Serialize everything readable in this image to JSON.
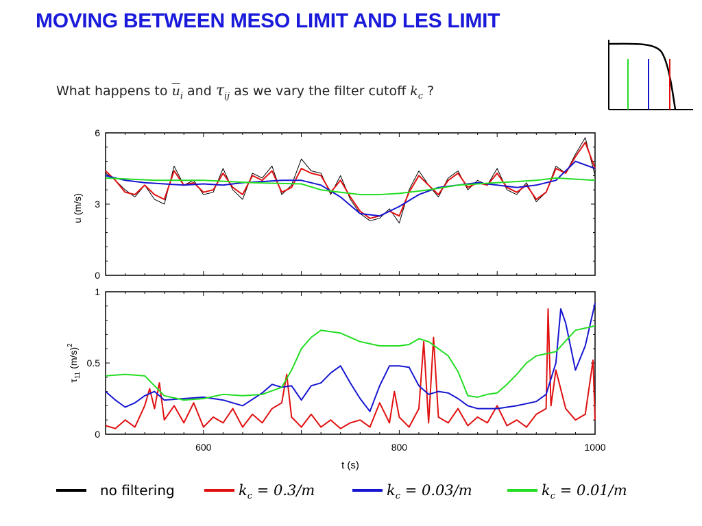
{
  "header": {
    "title": "MOVING BETWEEN MESO LIMIT AND LES LIMIT"
  },
  "question": {
    "prefix": "What happens to",
    "var_u": "u",
    "var_u_sub": "i",
    "conj": "and",
    "var_tau": "τ",
    "var_tau_sub": "ij",
    "suffix": "as we vary the filter cutoff",
    "var_k": "k",
    "var_k_sub": "c",
    "end": "?"
  },
  "colors": {
    "title": "#1a1adb",
    "no_filtering": "#000000",
    "kc_03": "#e01010",
    "kc_003": "#1515d0",
    "kc_001": "#22dd22"
  },
  "legend": [
    {
      "label": "no filtering",
      "color": "#000000",
      "math": false
    },
    {
      "label": "k",
      "sub": "c",
      "rest": " = 0.3/m",
      "color": "#e01010",
      "math": true
    },
    {
      "label": "k",
      "sub": "c",
      "rest": " = 0.03/m",
      "color": "#1515d0",
      "math": true
    },
    {
      "label": "k",
      "sub": "c",
      "rest": " = 0.01/m",
      "color": "#22dd22",
      "math": true
    }
  ],
  "chart_data": [
    {
      "type": "line",
      "ylabel": "u (m/s)",
      "xlim": [
        500,
        1000
      ],
      "ylim": [
        0,
        6
      ],
      "yticks": [
        "0",
        "3",
        "6"
      ],
      "series": [
        {
          "name": "no filtering",
          "color": "#000000",
          "x": [
            500,
            510,
            520,
            530,
            540,
            550,
            560,
            570,
            580,
            590,
            600,
            610,
            620,
            630,
            640,
            650,
            660,
            670,
            680,
            690,
            700,
            710,
            720,
            730,
            740,
            750,
            760,
            770,
            780,
            790,
            800,
            810,
            820,
            830,
            840,
            850,
            860,
            870,
            880,
            890,
            900,
            910,
            920,
            930,
            940,
            950,
            960,
            970,
            980,
            990,
            1000
          ],
          "y": [
            4.3,
            4.0,
            3.6,
            3.3,
            3.8,
            3.2,
            3.0,
            4.6,
            3.8,
            4.0,
            3.4,
            3.5,
            4.5,
            3.6,
            3.2,
            4.3,
            4.1,
            4.6,
            3.4,
            3.8,
            4.9,
            4.4,
            4.3,
            3.4,
            4.2,
            3.2,
            2.6,
            2.3,
            2.4,
            2.8,
            2.2,
            3.6,
            4.4,
            3.8,
            3.3,
            4.1,
            4.4,
            3.6,
            4.0,
            3.8,
            4.5,
            3.6,
            3.4,
            3.9,
            3.1,
            3.5,
            4.6,
            4.3,
            5.1,
            5.8,
            4.2
          ]
        },
        {
          "name": "k_c = 0.3/m",
          "color": "#e01010",
          "x": [
            500,
            510,
            520,
            530,
            540,
            550,
            560,
            570,
            580,
            590,
            600,
            610,
            620,
            630,
            640,
            650,
            660,
            670,
            680,
            690,
            700,
            710,
            720,
            730,
            740,
            750,
            760,
            770,
            780,
            790,
            800,
            810,
            820,
            830,
            840,
            850,
            860,
            870,
            880,
            890,
            900,
            910,
            920,
            930,
            940,
            950,
            960,
            970,
            980,
            990,
            1000
          ],
          "y": [
            4.4,
            4.0,
            3.5,
            3.4,
            3.8,
            3.4,
            3.2,
            4.4,
            3.8,
            3.9,
            3.5,
            3.6,
            4.3,
            3.7,
            3.4,
            4.2,
            4.0,
            4.4,
            3.5,
            3.7,
            4.5,
            4.3,
            4.2,
            3.5,
            4.0,
            3.3,
            2.7,
            2.4,
            2.5,
            2.7,
            2.5,
            3.5,
            4.2,
            3.8,
            3.4,
            4.0,
            4.3,
            3.7,
            3.9,
            3.8,
            4.3,
            3.7,
            3.5,
            3.8,
            3.2,
            3.5,
            4.5,
            4.3,
            5.0,
            5.6,
            4.5
          ]
        },
        {
          "name": "k_c = 0.03/m",
          "color": "#1515d0",
          "x": [
            500,
            520,
            540,
            560,
            580,
            600,
            620,
            640,
            660,
            680,
            700,
            720,
            740,
            760,
            780,
            800,
            820,
            840,
            860,
            880,
            900,
            920,
            940,
            960,
            980,
            1000
          ],
          "y": [
            4.2,
            4.0,
            3.9,
            3.85,
            3.8,
            3.85,
            3.8,
            3.9,
            3.95,
            4.0,
            4.0,
            3.8,
            3.3,
            2.6,
            2.5,
            2.9,
            3.4,
            3.7,
            3.8,
            3.9,
            3.8,
            3.7,
            3.8,
            4.0,
            4.8,
            4.5
          ]
        },
        {
          "name": "k_c = 0.01/m",
          "color": "#22dd22",
          "x": [
            500,
            550,
            600,
            650,
            700,
            720,
            740,
            760,
            780,
            800,
            830,
            860,
            900,
            940,
            960,
            980,
            1000
          ],
          "y": [
            4.1,
            4.0,
            4.0,
            3.9,
            3.85,
            3.6,
            3.5,
            3.4,
            3.4,
            3.45,
            3.6,
            3.8,
            3.9,
            4.0,
            4.1,
            4.05,
            4.0
          ]
        }
      ]
    },
    {
      "type": "line",
      "ylabel": "τ11 (m/s)2",
      "ylabel_main": "τ",
      "ylabel_sub": "11",
      "ylabel_mid": "(m/s)",
      "ylabel_sup": "2",
      "xlabel": "t (s)",
      "xlim": [
        500,
        1000
      ],
      "ylim": [
        0,
        1
      ],
      "yticks": [
        "0",
        "0.5",
        "1"
      ],
      "xticks": [
        "600",
        "800",
        "1000"
      ],
      "series": [
        {
          "name": "k_c = 0.3/m",
          "color": "#e01010",
          "x": [
            500,
            510,
            520,
            530,
            540,
            545,
            550,
            555,
            560,
            570,
            580,
            590,
            600,
            610,
            620,
            630,
            640,
            650,
            660,
            670,
            680,
            685,
            690,
            700,
            710,
            720,
            730,
            740,
            750,
            760,
            770,
            780,
            790,
            795,
            800,
            810,
            820,
            825,
            830,
            835,
            840,
            850,
            860,
            870,
            880,
            890,
            900,
            910,
            920,
            930,
            940,
            950,
            952,
            955,
            960,
            970,
            980,
            990,
            998,
            1000
          ],
          "y": [
            0.06,
            0.04,
            0.1,
            0.05,
            0.2,
            0.32,
            0.18,
            0.36,
            0.1,
            0.2,
            0.08,
            0.22,
            0.05,
            0.12,
            0.08,
            0.18,
            0.05,
            0.14,
            0.08,
            0.18,
            0.22,
            0.42,
            0.12,
            0.05,
            0.14,
            0.05,
            0.1,
            0.04,
            0.08,
            0.1,
            0.05,
            0.22,
            0.08,
            0.3,
            0.12,
            0.05,
            0.18,
            0.65,
            0.08,
            0.68,
            0.12,
            0.08,
            0.18,
            0.06,
            0.12,
            0.08,
            0.2,
            0.06,
            0.1,
            0.05,
            0.14,
            0.18,
            0.88,
            0.2,
            0.45,
            0.18,
            0.1,
            0.14,
            0.52,
            0.1
          ]
        },
        {
          "name": "k_c = 0.03/m",
          "color": "#1515d0",
          "x": [
            500,
            510,
            520,
            530,
            540,
            550,
            560,
            580,
            600,
            620,
            640,
            660,
            670,
            680,
            690,
            700,
            710,
            720,
            730,
            740,
            750,
            760,
            770,
            780,
            790,
            800,
            810,
            820,
            830,
            840,
            850,
            860,
            870,
            880,
            900,
            920,
            940,
            950,
            960,
            965,
            970,
            980,
            990,
            1000
          ],
          "y": [
            0.3,
            0.24,
            0.19,
            0.22,
            0.27,
            0.3,
            0.24,
            0.25,
            0.26,
            0.24,
            0.2,
            0.29,
            0.35,
            0.33,
            0.34,
            0.24,
            0.34,
            0.36,
            0.43,
            0.48,
            0.36,
            0.25,
            0.16,
            0.34,
            0.48,
            0.48,
            0.47,
            0.34,
            0.28,
            0.3,
            0.29,
            0.25,
            0.2,
            0.18,
            0.18,
            0.2,
            0.23,
            0.28,
            0.5,
            0.88,
            0.78,
            0.45,
            0.62,
            0.92
          ]
        },
        {
          "name": "k_c = 0.01/m",
          "color": "#22dd22",
          "x": [
            500,
            520,
            540,
            550,
            560,
            580,
            600,
            620,
            640,
            660,
            680,
            690,
            700,
            710,
            720,
            730,
            740,
            760,
            780,
            800,
            810,
            820,
            830,
            840,
            850,
            860,
            870,
            880,
            890,
            900,
            910,
            920,
            930,
            940,
            960,
            980,
            1000
          ],
          "y": [
            0.41,
            0.42,
            0.41,
            0.34,
            0.27,
            0.24,
            0.25,
            0.28,
            0.27,
            0.28,
            0.33,
            0.45,
            0.6,
            0.68,
            0.73,
            0.72,
            0.71,
            0.65,
            0.62,
            0.62,
            0.63,
            0.67,
            0.65,
            0.6,
            0.55,
            0.44,
            0.27,
            0.26,
            0.28,
            0.29,
            0.35,
            0.42,
            0.5,
            0.55,
            0.58,
            0.73,
            0.76
          ]
        }
      ]
    }
  ]
}
